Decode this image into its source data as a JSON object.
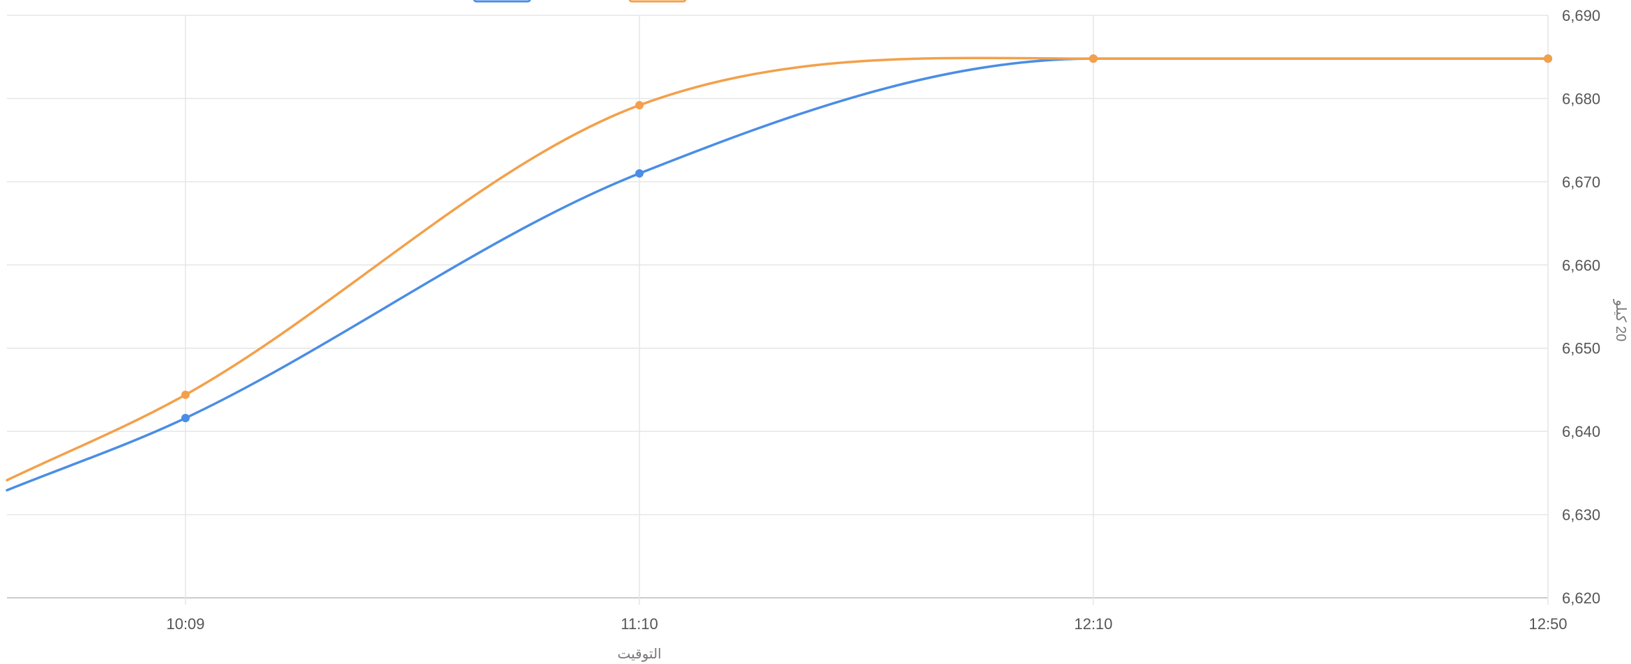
{
  "chart_data": {
    "type": "line",
    "title": "",
    "x": [
      "10:09",
      "11:10",
      "12:10",
      "12:50"
    ],
    "xlabel": "التوقيت",
    "ylabel": "20 كيلو",
    "ylim": [
      6620,
      6690
    ],
    "yticks": [
      6620,
      6630,
      6640,
      6650,
      6660,
      6670,
      6680,
      6690
    ],
    "ytick_labels": [
      "6,620",
      "6,630",
      "6,640",
      "6,650",
      "6,660",
      "6,670",
      "6,680",
      "6,690"
    ],
    "grid": true,
    "legend_position": "top",
    "series": [
      {
        "values": [
          6641.6,
          6671.0,
          6684.8,
          6684.8
        ],
        "color": "#4a8de5"
      },
      {
        "values": [
          6644.4,
          6679.2,
          6684.8,
          6684.8
        ],
        "color": "#f3a04a"
      }
    ],
    "gridline_color": "#e6e6e6",
    "axis_line_color": "#cccccc"
  }
}
